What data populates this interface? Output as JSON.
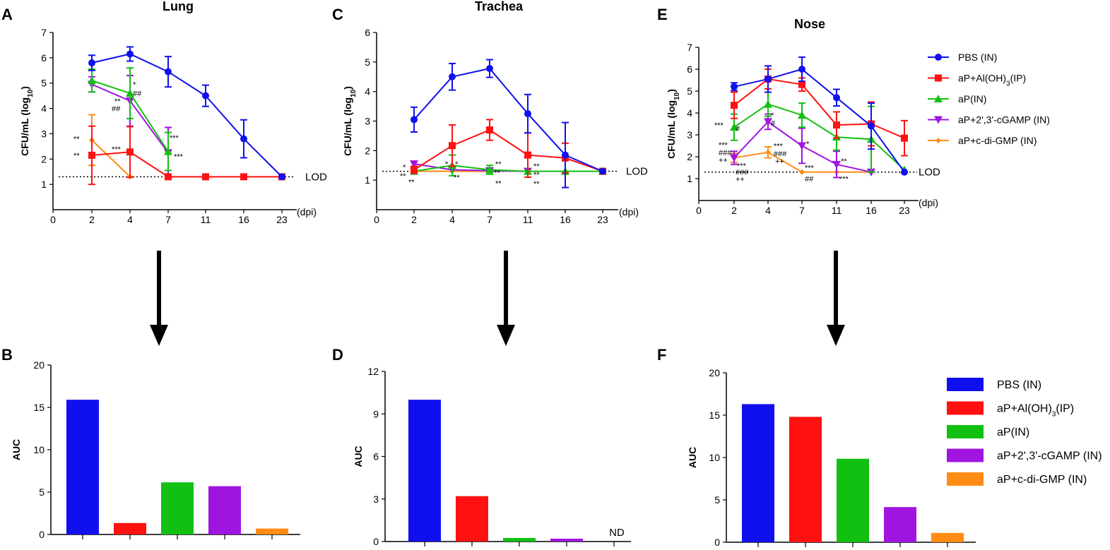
{
  "panel_labels": [
    "A",
    "B",
    "C",
    "D",
    "E",
    "F"
  ],
  "colors": {
    "PBS (IN)": "#1010ee",
    "aP+Al(OH)3(IP)": "#ff1111",
    "aP(IN)": "#11c011",
    "aP+2',3'-cGAMP (IN)": "#a014e0",
    "aP+c-di-GMP (IN)": "#ff8c14"
  },
  "legend": {
    "entries": [
      {
        "key": "PBS (IN)",
        "label": "PBS (IN)",
        "marker": "circle"
      },
      {
        "key": "aP+Al(OH)3(IP)",
        "label": "aP+Al(OH)",
        "sub": "3",
        "label_after": "(IP)",
        "marker": "square"
      },
      {
        "key": "aP(IN)",
        "label": "aP(IN)",
        "marker": "triangle"
      },
      {
        "key": "aP+2',3'-cGAMP (IN)",
        "label": "aP+2',3'-cGAMP (IN)",
        "marker": "triangle-down"
      },
      {
        "key": "aP+c-di-GMP (IN)",
        "label": "aP+c-di-GMP (IN)",
        "marker": "diamond"
      }
    ]
  },
  "chart_data": [
    {
      "panel": "A",
      "type": "line",
      "title": "Lung",
      "ylabel": "CFU/mL (log",
      "ylabel_sub": "10",
      "ylabel_end": ")",
      "xunit": "(dpi)",
      "ylim": [
        0,
        7
      ],
      "yticks": [
        1,
        2,
        3,
        4,
        5,
        6,
        7
      ],
      "x_categories": [
        "0",
        "2",
        "4",
        "7",
        "11",
        "16",
        "23"
      ],
      "lod": {
        "value": 1.3,
        "label": "LOD"
      },
      "series": [
        {
          "name": "PBS (IN)",
          "x": [
            "2",
            "4",
            "7",
            "11",
            "16",
            "23"
          ],
          "y": [
            5.8,
            6.15,
            5.45,
            4.5,
            2.8,
            1.3
          ],
          "err": [
            0.3,
            0.28,
            0.6,
            0.42,
            0.75,
            0
          ]
        },
        {
          "name": "aP+Al(OH)3(IP)",
          "x": [
            "2",
            "4",
            "7",
            "11",
            "16",
            "23"
          ],
          "y": [
            2.15,
            2.28,
            1.3,
            1.3,
            1.3,
            1.3
          ],
          "err": [
            1.15,
            1.0,
            0,
            0,
            0,
            0
          ]
        },
        {
          "name": "aP(IN)",
          "x": [
            "2",
            "4",
            "7"
          ],
          "y": [
            5.1,
            4.6,
            2.3
          ],
          "err": [
            0.45,
            1.0,
            0.75
          ]
        },
        {
          "name": "aP+2',3'-cGAMP (IN)",
          "x": [
            "2",
            "4",
            "7"
          ],
          "y": [
            4.95,
            4.3,
            2.25
          ],
          "err": [
            0.3,
            1.0,
            1.0
          ]
        },
        {
          "name": "aP+c-di-GMP (IN)",
          "x": [
            "2",
            "4"
          ],
          "y": [
            2.75,
            1.3
          ],
          "err": [
            1.0,
            0
          ]
        }
      ],
      "annotations": [
        {
          "text": "**",
          "x": "2",
          "y": 2.8,
          "dx": -26
        },
        {
          "text": "**",
          "x": "2",
          "y": 2.15,
          "dx": -26
        },
        {
          "text": "*",
          "x": "4",
          "y": 4.95,
          "dx": 4
        },
        {
          "text": "##",
          "x": "4",
          "y": 4.6,
          "dx": 4
        },
        {
          "text": "**",
          "x": "4",
          "y": 4.3,
          "dx": -22
        },
        {
          "text": "##",
          "x": "4",
          "y": 4.0,
          "dx": -26
        },
        {
          "text": "***",
          "x": "4",
          "y": 2.4,
          "dx": -26
        },
        {
          "text": "***",
          "x": "7",
          "y": 2.85,
          "dx": 2
        },
        {
          "text": "***",
          "x": "7",
          "y": 2.1,
          "dx": 8
        }
      ]
    },
    {
      "panel": "C",
      "type": "line",
      "title": "Trachea",
      "ylabel": "CFU/mL (log",
      "ylabel_sub": "10",
      "ylabel_end": ")",
      "xunit": "(dpi)",
      "ylim": [
        0,
        6
      ],
      "yticks": [
        1,
        2,
        3,
        4,
        5,
        6
      ],
      "x_categories": [
        "0",
        "2",
        "4",
        "7",
        "11",
        "16",
        "23"
      ],
      "lod": {
        "value": 1.3,
        "label": "LOD"
      },
      "series": [
        {
          "name": "PBS (IN)",
          "x": [
            "2",
            "4",
            "7",
            "11",
            "16",
            "23"
          ],
          "y": [
            3.05,
            4.5,
            4.78,
            3.25,
            1.85,
            1.3
          ],
          "err": [
            0.42,
            0.45,
            0.3,
            0.65,
            1.1,
            0
          ]
        },
        {
          "name": "aP+Al(OH)3(IP)",
          "x": [
            "2",
            "4",
            "7",
            "11",
            "16",
            "23"
          ],
          "y": [
            1.35,
            2.17,
            2.7,
            1.85,
            1.75,
            1.3
          ],
          "err": [
            0.12,
            0.7,
            0.35,
            0.75,
            0.5,
            0
          ]
        },
        {
          "name": "aP(IN)",
          "x": [
            "2",
            "4",
            "7",
            "11",
            "16",
            "23"
          ],
          "y": [
            1.3,
            1.5,
            1.35,
            1.3,
            1.3,
            1.3
          ],
          "err": [
            0,
            0.35,
            0.15,
            0,
            0,
            0
          ]
        },
        {
          "name": "aP+2',3'-cGAMP (IN)",
          "x": [
            "2",
            "4",
            "7",
            "11"
          ],
          "y": [
            1.55,
            1.35,
            1.32,
            1.3
          ],
          "err": [
            0,
            0,
            0,
            0
          ]
        },
        {
          "name": "aP+c-di-GMP (IN)",
          "x": [
            "2",
            "4",
            "7"
          ],
          "y": [
            1.3,
            1.3,
            1.3
          ],
          "err": [
            0,
            0,
            0
          ]
        }
      ],
      "annotations": [
        {
          "text": "*",
          "x": "2",
          "y": 1.45,
          "dx": -16
        },
        {
          "text": "**",
          "x": "2",
          "y": 1.15,
          "dx": -20
        },
        {
          "text": "**",
          "x": "2",
          "y": 0.95,
          "dx": -8
        },
        {
          "text": "*",
          "x": "4",
          "y": 1.55,
          "dx": -10
        },
        {
          "text": "*",
          "x": "4",
          "y": 1.55,
          "dx": 4
        },
        {
          "text": "**",
          "x": "4",
          "y": 1.1,
          "dx": 2
        },
        {
          "text": "**",
          "x": "7",
          "y": 1.55,
          "dx": 8
        },
        {
          "text": "**",
          "x": "7",
          "y": 1.25,
          "dx": 6
        },
        {
          "text": "**",
          "x": "7",
          "y": 0.9,
          "dx": 8
        },
        {
          "text": "**",
          "x": "11",
          "y": 1.48,
          "dx": 8
        },
        {
          "text": "**",
          "x": "11",
          "y": 1.2,
          "dx": 8
        },
        {
          "text": "**",
          "x": "11",
          "y": 0.88,
          "dx": 8
        }
      ]
    },
    {
      "panel": "E",
      "type": "line",
      "title": "Nose",
      "ylabel": "CFU/mL (log",
      "ylabel_sub": "10",
      "ylabel_end": ")",
      "xunit": "(dpi)",
      "ylim": [
        0,
        7
      ],
      "yticks": [
        1,
        2,
        3,
        4,
        5,
        6,
        7
      ],
      "x_categories": [
        "0",
        "2",
        "4",
        "7",
        "11",
        "16",
        "23"
      ],
      "lod": {
        "value": 1.3,
        "label": "LOD"
      },
      "series": [
        {
          "name": "PBS (IN)",
          "x": [
            "2",
            "4",
            "7",
            "11",
            "16",
            "23"
          ],
          "y": [
            5.2,
            5.55,
            6.0,
            4.7,
            3.4,
            1.3
          ],
          "err": [
            0.18,
            0.6,
            0.55,
            0.38,
            1.05,
            0
          ]
        },
        {
          "name": "aP+Al(OH)3(IP)",
          "x": [
            "2",
            "4",
            "7",
            "11",
            "16",
            "23"
          ],
          "y": [
            4.35,
            5.55,
            5.3,
            3.45,
            3.5,
            2.85
          ],
          "err": [
            0.6,
            0.45,
            0.3,
            0.6,
            1.0,
            0.8
          ]
        },
        {
          "name": "aP(IN)",
          "x": [
            "2",
            "4",
            "7",
            "11",
            "16",
            "23"
          ],
          "y": [
            3.35,
            4.4,
            3.9,
            2.9,
            2.8,
            1.4
          ],
          "err": [
            0.6,
            0.55,
            0.55,
            0.6,
            1.5,
            0
          ]
        },
        {
          "name": "aP+2',3'-cGAMP (IN)",
          "x": [
            "2",
            "4",
            "7",
            "11",
            "16"
          ],
          "y": [
            1.95,
            3.6,
            2.5,
            1.65,
            1.3
          ],
          "err": [
            0.3,
            0.35,
            0.8,
            0.6,
            0
          ]
        },
        {
          "name": "aP+c-di-GMP (IN)",
          "x": [
            "2",
            "4",
            "7",
            "11",
            "16"
          ],
          "y": [
            1.95,
            2.2,
            1.3,
            1.3,
            1.3
          ],
          "err": [
            0.2,
            0.25,
            0,
            0,
            0
          ]
        }
      ],
      "annotations": [
        {
          "text": "***",
          "x": "2",
          "y": 3.45,
          "dx": -28
        },
        {
          "text": "#",
          "x": "2",
          "y": 3.3,
          "dx": 2
        },
        {
          "text": "***",
          "x": "2",
          "y": 2.55,
          "dx": -22
        },
        {
          "text": "###",
          "x": "2",
          "y": 2.2,
          "dx": -22
        },
        {
          "text": "++",
          "x": "2",
          "y": 1.85,
          "dx": -22
        },
        {
          "text": "***",
          "x": "2",
          "y": 1.6,
          "dx": 4
        },
        {
          "text": "###",
          "x": "2",
          "y": 1.3,
          "dx": 2
        },
        {
          "text": "++",
          "x": "2",
          "y": 0.98,
          "dx": 2
        },
        {
          "text": "*",
          "x": "4",
          "y": 3.9,
          "dx": 4
        },
        {
          "text": "#",
          "x": "4",
          "y": 3.55,
          "dx": 4
        },
        {
          "text": "***",
          "x": "4",
          "y": 2.5,
          "dx": 8
        },
        {
          "text": "###",
          "x": "4",
          "y": 2.15,
          "dx": 8
        },
        {
          "text": "++",
          "x": "4",
          "y": 1.8,
          "dx": 10
        },
        {
          "text": "*",
          "x": "7",
          "y": 2.6,
          "dx": 6
        },
        {
          "text": "***",
          "x": "7",
          "y": 1.5,
          "dx": 4
        },
        {
          "text": "##",
          "x": "7",
          "y": 1.0,
          "dx": 4
        },
        {
          "text": "**",
          "x": "11",
          "y": 1.8,
          "dx": 6
        },
        {
          "text": "***",
          "x": "11",
          "y": 1.0,
          "dx": 4
        }
      ]
    },
    {
      "panel": "B",
      "type": "bar",
      "ylabel": "AUC",
      "ylim": [
        0,
        20
      ],
      "yticks": [
        0,
        5,
        10,
        15,
        20
      ],
      "categories": [
        "PBS (IN)",
        "aP+Al(OH)3(IP)",
        "aP(IN)",
        "aP+2',3'-cGAMP (IN)",
        "aP+c-di-GMP (IN)"
      ],
      "values": [
        15.9,
        1.35,
        6.15,
        5.7,
        0.7
      ]
    },
    {
      "panel": "D",
      "type": "bar",
      "ylabel": "AUC",
      "ylim": [
        0,
        12
      ],
      "yticks": [
        0,
        3,
        6,
        9,
        12
      ],
      "categories": [
        "PBS (IN)",
        "aP+Al(OH)3(IP)",
        "aP(IN)",
        "aP+2',3'-cGAMP (IN)",
        "aP+c-di-GMP (IN)"
      ],
      "values": [
        10.0,
        3.2,
        0.25,
        0.2,
        null
      ],
      "nd_label": "ND"
    },
    {
      "panel": "F",
      "type": "bar",
      "ylabel": "AUC",
      "ylim": [
        0,
        20
      ],
      "yticks": [
        0,
        5,
        10,
        15,
        20
      ],
      "categories": [
        "PBS (IN)",
        "aP+Al(OH)3(IP)",
        "aP(IN)",
        "aP+2',3'-cGAMP (IN)",
        "aP+c-di-GMP (IN)"
      ],
      "values": [
        16.3,
        14.8,
        9.85,
        4.15,
        1.1
      ]
    }
  ]
}
